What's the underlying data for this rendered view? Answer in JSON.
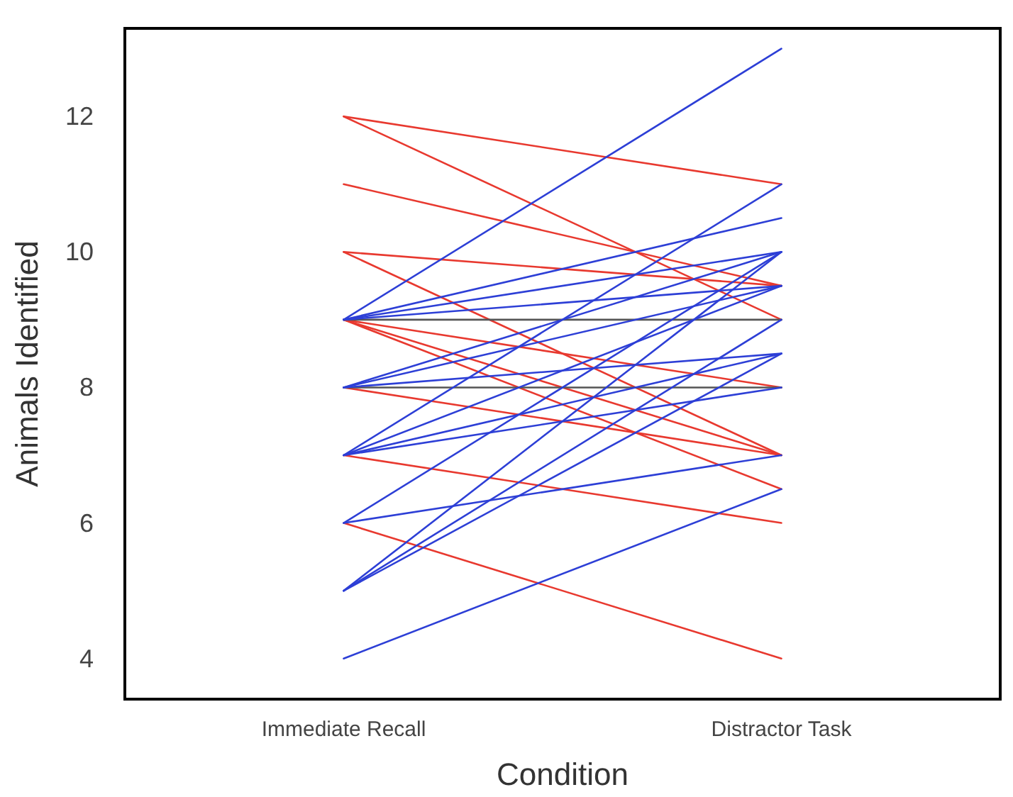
{
  "chart_data": {
    "type": "line",
    "xlabel": "Condition",
    "ylabel": "Animals Identified",
    "categories": [
      "Immediate Recall",
      "Distractor Task"
    ],
    "ylim": [
      3.4,
      13.3
    ],
    "yticks": [
      4,
      6,
      8,
      10,
      12
    ],
    "grid": false,
    "marker": "none",
    "line_style": "solid",
    "series": [
      {
        "color": "#e8392f",
        "values": [
          12,
          11
        ]
      },
      {
        "color": "#e8392f",
        "values": [
          12,
          9
        ]
      },
      {
        "color": "#e8392f",
        "values": [
          11,
          9.5
        ]
      },
      {
        "color": "#e8392f",
        "values": [
          10,
          9.5
        ]
      },
      {
        "color": "#e8392f",
        "values": [
          10,
          7
        ]
      },
      {
        "color": "#e8392f",
        "values": [
          9,
          8
        ]
      },
      {
        "color": "#e8392f",
        "values": [
          9,
          7
        ]
      },
      {
        "color": "#e8392f",
        "values": [
          9,
          6.5
        ]
      },
      {
        "color": "#e8392f",
        "values": [
          8,
          7
        ]
      },
      {
        "color": "#e8392f",
        "values": [
          7,
          6
        ]
      },
      {
        "color": "#e8392f",
        "values": [
          6,
          4
        ]
      },
      {
        "color": "#555555",
        "values": [
          9,
          9
        ]
      },
      {
        "color": "#555555",
        "values": [
          8,
          8
        ]
      },
      {
        "color": "#2d3fd6",
        "values": [
          9,
          13
        ]
      },
      {
        "color": "#2d3fd6",
        "values": [
          9,
          10.5
        ]
      },
      {
        "color": "#2d3fd6",
        "values": [
          9,
          10
        ]
      },
      {
        "color": "#2d3fd6",
        "values": [
          9,
          9.5
        ]
      },
      {
        "color": "#2d3fd6",
        "values": [
          8,
          10
        ]
      },
      {
        "color": "#2d3fd6",
        "values": [
          8,
          9.5
        ]
      },
      {
        "color": "#2d3fd6",
        "values": [
          8,
          8.5
        ]
      },
      {
        "color": "#2d3fd6",
        "values": [
          7,
          11
        ]
      },
      {
        "color": "#2d3fd6",
        "values": [
          7,
          9.5
        ]
      },
      {
        "color": "#2d3fd6",
        "values": [
          7,
          8.5
        ]
      },
      {
        "color": "#2d3fd6",
        "values": [
          7,
          8
        ]
      },
      {
        "color": "#2d3fd6",
        "values": [
          6,
          10
        ]
      },
      {
        "color": "#2d3fd6",
        "values": [
          6,
          7
        ]
      },
      {
        "color": "#2d3fd6",
        "values": [
          5,
          10
        ]
      },
      {
        "color": "#2d3fd6",
        "values": [
          5,
          9
        ]
      },
      {
        "color": "#2d3fd6",
        "values": [
          5,
          8.5
        ]
      },
      {
        "color": "#2d3fd6",
        "values": [
          4,
          6.5
        ]
      }
    ]
  }
}
